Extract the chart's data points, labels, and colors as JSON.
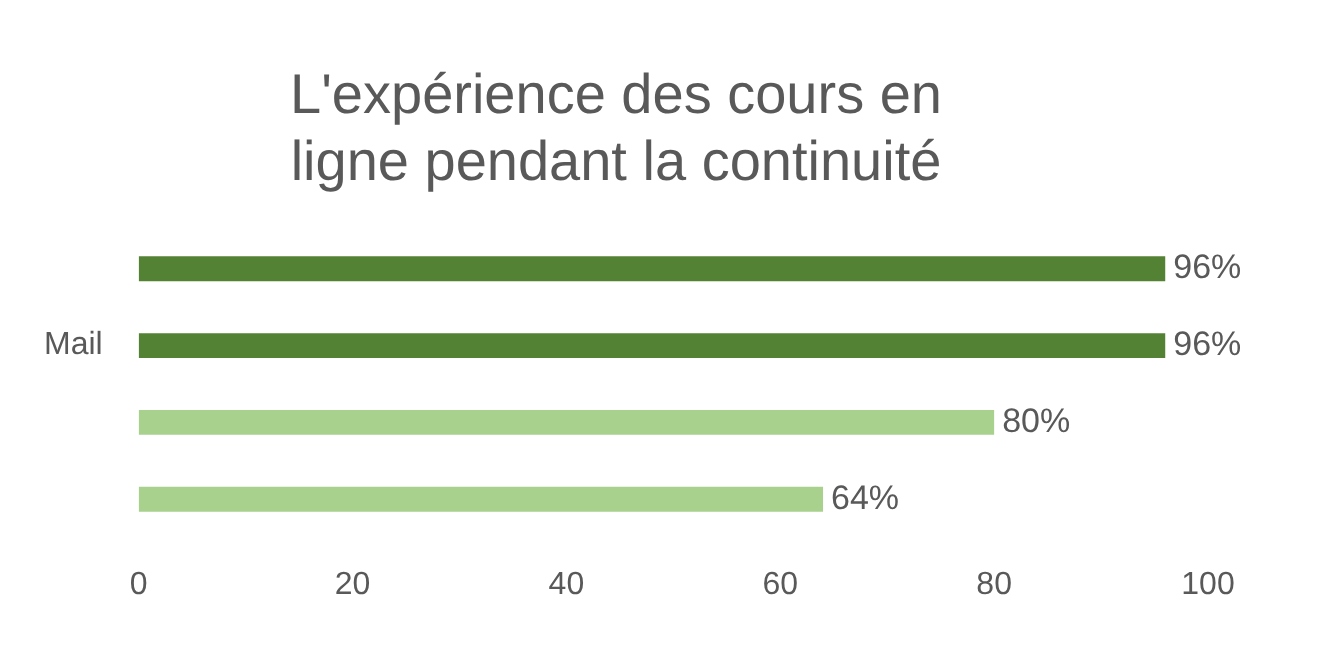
{
  "chart_data": {
    "type": "bar",
    "orientation": "horizontal",
    "title": "L'expérience des cours en ligne pendant la continuité",
    "categories": [
      null,
      "Mail",
      null,
      null
    ],
    "values": [
      96,
      96,
      80,
      64
    ],
    "colors": [
      "#548235",
      "#548235",
      "#a9d18e",
      "#a9d18e"
    ],
    "value_labels": [
      "96%",
      "96%",
      "80%",
      "64%"
    ],
    "xlim": [
      0,
      100
    ],
    "xticks": [
      0,
      20,
      40,
      60,
      80,
      100
    ],
    "grid": false,
    "legend": false
  }
}
